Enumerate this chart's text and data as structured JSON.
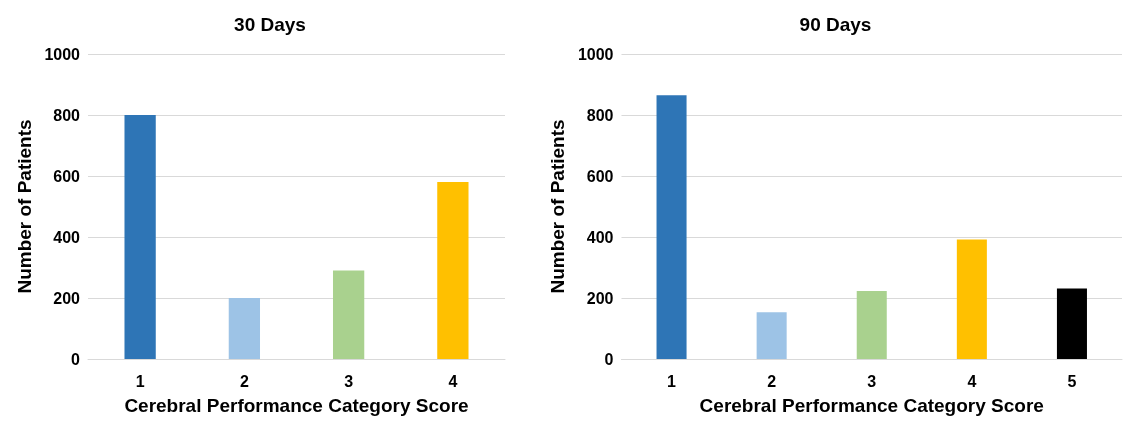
{
  "chart_data": [
    {
      "type": "bar",
      "title": "30 Days",
      "xlabel": "Cerebral Performance Category Score",
      "ylabel": "Number of Patients",
      "categories": [
        "1",
        "2",
        "3",
        "4"
      ],
      "values": [
        800,
        200,
        290,
        580
      ],
      "colors": [
        "#2e75b6",
        "#9dc3e6",
        "#a9d18e",
        "#ffc000"
      ],
      "ylim": [
        0,
        1000
      ],
      "yticks": [
        0,
        200,
        400,
        600,
        800,
        1000
      ],
      "grid": "y"
    },
    {
      "type": "bar",
      "title": "90 Days",
      "xlabel": "Cerebral Performance Category Score",
      "ylabel": "Number of Patients",
      "categories": [
        "1",
        "2",
        "3",
        "4",
        "5"
      ],
      "values": [
        865,
        153,
        223,
        392,
        231
      ],
      "colors": [
        "#2e75b6",
        "#9dc3e6",
        "#a9d18e",
        "#ffc000",
        "#000000"
      ],
      "ylim": [
        0,
        1000
      ],
      "yticks": [
        0,
        200,
        400,
        600,
        800,
        1000
      ],
      "grid": "y"
    }
  ]
}
